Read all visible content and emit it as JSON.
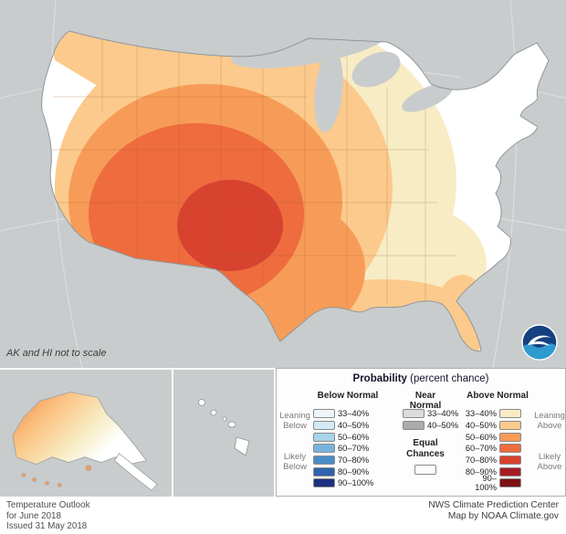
{
  "map": {
    "note": "AK and HI not to scale",
    "icons": {
      "noaa_logo": "noaa-seagull-logo"
    }
  },
  "legend": {
    "title_bold": "Probability",
    "title_rest": " (percent chance)",
    "columns": {
      "below": {
        "header": "Below Normal",
        "ranges": [
          "33–40%",
          "40–50%",
          "50–60%",
          "60–70%",
          "70–80%",
          "80–90%",
          "90–100%"
        ],
        "colors": [
          "#eef6fb",
          "#d3e9f5",
          "#a9d3ea",
          "#77b4dc",
          "#4a8cc7",
          "#2f63ad",
          "#1d3080"
        ]
      },
      "near": {
        "header_line1": "Near",
        "header_line2": "Normal",
        "ranges": [
          "33–40%",
          "40–50%"
        ],
        "colors": [
          "#dcdcdc",
          "#ababab"
        ],
        "equal_line1": "Equal",
        "equal_line2": "Chances",
        "equal_color": "#ffffff"
      },
      "above": {
        "header": "Above Normal",
        "ranges": [
          "33–40%",
          "40–50%",
          "50–60%",
          "60–70%",
          "70–80%",
          "80–90%",
          "90–100%"
        ],
        "colors": [
          "#f7ecc4",
          "#fbca8c",
          "#f79c58",
          "#ee6c3e",
          "#d8432f",
          "#a81c24",
          "#7c1014"
        ]
      }
    },
    "side_labels": {
      "leaning_below": [
        "Leaning",
        "Below"
      ],
      "likely_below": [
        "Likely",
        "Below"
      ],
      "leaning_above": [
        "Leaning",
        "Above"
      ],
      "likely_above": [
        "Likely",
        "Above"
      ]
    }
  },
  "footer": {
    "left_lines": [
      "Temperature Outlook",
      "for June 2018",
      "Issued 31 May 2018"
    ],
    "right_lines": [
      "NWS Climate Prediction Center",
      "Map by NOAA Climate.gov"
    ]
  },
  "chart_data": {
    "type": "choropleth-map",
    "title": "Temperature Outlook for June 2018",
    "issued": "Issued 31 May 2018",
    "units": "Probability (percent chance)",
    "legend": {
      "below_normal": {
        "labels": [
          "33–40%",
          "40–50%",
          "50–60%",
          "60–70%",
          "70–80%",
          "80–90%",
          "90–100%"
        ],
        "colors": [
          "#eef6fb",
          "#d3e9f5",
          "#a9d3ea",
          "#77b4dc",
          "#4a8cc7",
          "#2f63ad",
          "#1d3080"
        ],
        "groups": [
          "Leaning Below (33–50%)",
          "Likely Below (50–100%)"
        ]
      },
      "near_normal": {
        "labels": [
          "33–40%",
          "40–50%"
        ],
        "colors": [
          "#dcdcdc",
          "#ababab"
        ]
      },
      "equal_chances": {
        "label": "Equal Chances",
        "color": "#ffffff"
      },
      "above_normal": {
        "labels": [
          "33–40%",
          "40–50%",
          "50–60%",
          "60–70%",
          "70–80%",
          "80–90%",
          "90–100%"
        ],
        "colors": [
          "#f7ecc4",
          "#fbca8c",
          "#f79c58",
          "#ee6c3e",
          "#d8432f",
          "#a81c24",
          "#7c1014"
        ],
        "groups": [
          "Leaning Above (33–50%)",
          "Likely Above (50–100%)"
        ]
      }
    },
    "depicted_regions": [
      {
        "area": "Eastern New Mexico, SE Colorado, Texas panhandle, western Oklahoma/Kansas",
        "category": "Above Normal 70–80%"
      },
      {
        "area": "Great Basin, Four Corners, Rockies, most of Texas and Oklahoma",
        "category": "Above Normal 60–70%"
      },
      {
        "area": "California, interior West, central Plains, Gulf-coast Texas/Louisiana",
        "category": "Above Normal 50–60%"
      },
      {
        "area": "Pacific Northwest, northern Plains, upper Midwest, mid-Mississippi Valley, Gulf Coast, Florida",
        "category": "Above Normal 40–50%"
      },
      {
        "area": "Great Lakes, Ohio Valley, interior Southeast",
        "category": "Above Normal 33–40%"
      },
      {
        "area": "Northeast, Mid-Atlantic, coastal Carolinas",
        "category": "Equal Chances"
      },
      {
        "area": "Western and northern Alaska",
        "category": "Above Normal 40–60%"
      },
      {
        "area": "Southeast Alaska panhandle",
        "category": "Equal Chances"
      },
      {
        "area": "Hawaii",
        "category": "Equal Chances"
      }
    ]
  }
}
